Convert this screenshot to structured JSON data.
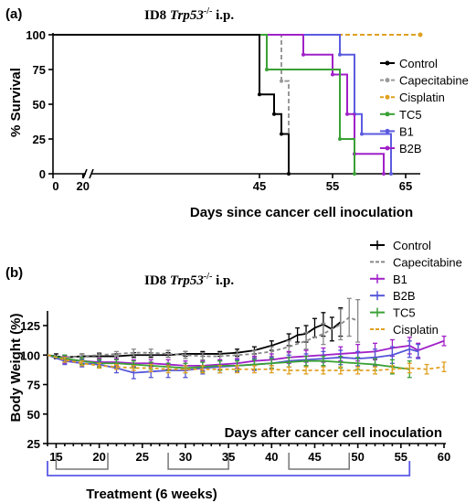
{
  "panels": [
    {
      "label": "(a)",
      "title_main": "ID8 ",
      "title_gene": "Trp53",
      "title_sup": "-/-",
      "title_tail": " i.p.",
      "xlabel": "Days since cancer cell inoculation",
      "ylabel": "% Survival"
    },
    {
      "label": "(b)",
      "title_main": "ID8 ",
      "title_gene": "Trp53",
      "title_sup": "-/-",
      "title_tail": " i.p.",
      "xlabel": "Days after cancer cell inoculation",
      "ylabel": "Body Weight (%)",
      "treatment_label": "Treatment (6 weeks)"
    }
  ],
  "chart_data": [
    {
      "type": "line",
      "subtype": "kaplan-meier",
      "title": "ID8 Trp53-/- i.p.",
      "xlabel": "Days since cancer cell inoculation",
      "ylabel": "% Survival",
      "xlim_segments": [
        [
          0,
          22
        ],
        [
          22,
          67
        ]
      ],
      "ylim": [
        0,
        100
      ],
      "x_ticks": [
        0,
        20,
        45,
        55,
        65
      ],
      "x_tick_labels": [
        "0",
        "20",
        "45",
        "55",
        "65"
      ],
      "y_ticks": [
        0,
        25,
        50,
        75,
        100
      ],
      "y_tick_labels": [
        "0",
        "25",
        "50",
        "75",
        "100"
      ],
      "legend_position": "right",
      "series": [
        {
          "name": "Control",
          "color": "#000000",
          "dash": "solid",
          "marker": "dot",
          "steps": [
            [
              0,
              100
            ],
            [
              45,
              57.1
            ],
            [
              47,
              42.9
            ],
            [
              48,
              28.6
            ],
            [
              49,
              0
            ]
          ]
        },
        {
          "name": "Capecitabine",
          "color": "#999999",
          "dash": "dashed",
          "marker": "dot",
          "steps": [
            [
              0,
              100
            ],
            [
              48,
              66.7
            ],
            [
              49,
              0
            ]
          ]
        },
        {
          "name": "Cisplatin",
          "color": "#e0a020",
          "dash": "dashed",
          "marker": "dot",
          "steps": [
            [
              0,
              100
            ],
            [
              67,
              100
            ]
          ]
        },
        {
          "name": "TC5",
          "color": "#3aa135",
          "dash": "solid",
          "marker": "dot",
          "steps": [
            [
              0,
              100
            ],
            [
              46,
              75
            ],
            [
              56,
              25
            ],
            [
              58,
              0
            ]
          ]
        },
        {
          "name": "B1",
          "color": "#5b5be0",
          "dash": "solid",
          "marker": "dot",
          "steps": [
            [
              0,
              100
            ],
            [
              56,
              85.7
            ],
            [
              58,
              42.9
            ],
            [
              59,
              28.6
            ],
            [
              63,
              0
            ]
          ]
        },
        {
          "name": "B2B",
          "color": "#a020c8",
          "dash": "solid",
          "marker": "dot",
          "steps": [
            [
              0,
              100
            ],
            [
              51,
              85.7
            ],
            [
              55,
              71.4
            ],
            [
              57,
              42.9
            ],
            [
              58,
              14.3
            ],
            [
              62,
              0
            ]
          ]
        }
      ]
    },
    {
      "type": "line",
      "title": "ID8 Trp53-/- i.p.",
      "xlabel": "Days after cancer cell inoculation",
      "ylabel": "Body Weight (%)",
      "xlim": [
        14,
        60
      ],
      "ylim": [
        25,
        135
      ],
      "x_ticks": [
        15,
        20,
        25,
        30,
        35,
        40,
        45,
        50,
        55,
        60
      ],
      "y_ticks": [
        25,
        50,
        75,
        100,
        125
      ],
      "legend_position": "top-right",
      "treatment_periods": [
        [
          15,
          21
        ],
        [
          28,
          35
        ],
        [
          42,
          49
        ]
      ],
      "treatment_span": [
        14,
        56
      ],
      "series": [
        {
          "name": "Control",
          "color": "#000000",
          "dash": "solid",
          "points": [
            [
              14,
              100,
              1
            ],
            [
              15,
              99,
              2
            ],
            [
              16,
              98,
              2
            ],
            [
              18,
              99,
              2
            ],
            [
              20,
              99,
              2
            ],
            [
              22,
              99,
              2
            ],
            [
              24,
              100,
              2
            ],
            [
              26,
              100,
              2
            ],
            [
              28,
              100,
              2
            ],
            [
              30,
              101,
              2
            ],
            [
              32,
              101,
              2
            ],
            [
              34,
              101,
              2
            ],
            [
              36,
              102,
              3
            ],
            [
              38,
              104,
              3
            ],
            [
              40,
              108,
              4
            ],
            [
              42,
              113,
              5
            ],
            [
              43,
              117,
              6
            ],
            [
              44,
              118,
              7
            ],
            [
              45,
              123,
              8
            ],
            [
              46,
              126,
              10
            ],
            [
              47,
              122,
              10
            ],
            [
              48,
              128,
              12
            ]
          ]
        },
        {
          "name": "Capecitabine",
          "color": "#888888",
          "dash": "dashed",
          "points": [
            [
              14,
              100,
              1
            ],
            [
              16,
              98,
              2
            ],
            [
              18,
              99,
              2
            ],
            [
              20,
              100,
              2
            ],
            [
              22,
              101,
              2
            ],
            [
              24,
              102,
              3
            ],
            [
              26,
              102,
              3
            ],
            [
              28,
              101,
              3
            ],
            [
              30,
              100,
              3
            ],
            [
              32,
              99,
              3
            ],
            [
              34,
              99,
              3
            ],
            [
              36,
              100,
              3
            ],
            [
              38,
              101,
              3
            ],
            [
              40,
              103,
              4
            ],
            [
              42,
              107,
              5
            ],
            [
              44,
              112,
              7
            ],
            [
              46,
              118,
              9
            ],
            [
              48,
              126,
              13
            ],
            [
              49,
              132,
              16
            ],
            [
              50,
              129,
              18
            ]
          ]
        },
        {
          "name": "B1",
          "color": "#a020c8",
          "dash": "solid",
          "points": [
            [
              14,
              100,
              1
            ],
            [
              16,
              96,
              3
            ],
            [
              18,
              95,
              3
            ],
            [
              20,
              94,
              3
            ],
            [
              22,
              94,
              3
            ],
            [
              24,
              93,
              3
            ],
            [
              26,
              93,
              3
            ],
            [
              28,
              92,
              4
            ],
            [
              30,
              91,
              4
            ],
            [
              32,
              91,
              4
            ],
            [
              34,
              92,
              4
            ],
            [
              36,
              93,
              4
            ],
            [
              38,
              95,
              4
            ],
            [
              40,
              96,
              5
            ],
            [
              42,
              98,
              5
            ],
            [
              44,
              99,
              5
            ],
            [
              46,
              100,
              6
            ],
            [
              48,
              101,
              6
            ],
            [
              50,
              102,
              7
            ],
            [
              52,
              103,
              7
            ],
            [
              54,
              106,
              7
            ],
            [
              56,
              108,
              7
            ],
            [
              57,
              104,
              6
            ],
            [
              60,
              112,
              4
            ]
          ]
        },
        {
          "name": "B2B",
          "color": "#5555d8",
          "dash": "solid",
          "points": [
            [
              14,
              100,
              1
            ],
            [
              16,
              95,
              3
            ],
            [
              18,
              93,
              3
            ],
            [
              20,
              92,
              3
            ],
            [
              22,
              89,
              4
            ],
            [
              24,
              85,
              5
            ],
            [
              26,
              86,
              5
            ],
            [
              28,
              87,
              6
            ],
            [
              30,
              87,
              6
            ],
            [
              32,
              89,
              5
            ],
            [
              34,
              90,
              5
            ],
            [
              36,
              91,
              5
            ],
            [
              38,
              92,
              5
            ],
            [
              40,
              93,
              5
            ],
            [
              42,
              95,
              5
            ],
            [
              44,
              96,
              5
            ],
            [
              46,
              97,
              6
            ],
            [
              48,
              98,
              6
            ],
            [
              50,
              97,
              6
            ],
            [
              52,
              98,
              7
            ],
            [
              54,
              100,
              7
            ],
            [
              56,
              105,
              7
            ],
            [
              57,
              103,
              6
            ]
          ]
        },
        {
          "name": "TC5",
          "color": "#3aa135",
          "dash": "solid",
          "points": [
            [
              14,
              100,
              1
            ],
            [
              16,
              97,
              3
            ],
            [
              18,
              95,
              3
            ],
            [
              20,
              93,
              3
            ],
            [
              22,
              93,
              3
            ],
            [
              24,
              92,
              3
            ],
            [
              26,
              91,
              3
            ],
            [
              28,
              90,
              3
            ],
            [
              30,
              89,
              4
            ],
            [
              32,
              90,
              4
            ],
            [
              34,
              91,
              4
            ],
            [
              36,
              91,
              4
            ],
            [
              38,
              92,
              4
            ],
            [
              40,
              93,
              4
            ],
            [
              42,
              94,
              4
            ],
            [
              44,
              95,
              4
            ],
            [
              46,
              95,
              4
            ],
            [
              48,
              94,
              5
            ],
            [
              50,
              93,
              5
            ],
            [
              52,
              92,
              5
            ],
            [
              54,
              90,
              6
            ],
            [
              56,
              88,
              7
            ]
          ]
        },
        {
          "name": "Cisplatin",
          "color": "#e0a020",
          "dash": "dashed",
          "points": [
            [
              14,
              100,
              1
            ],
            [
              16,
              96,
              2
            ],
            [
              18,
              93,
              2
            ],
            [
              20,
              91,
              2
            ],
            [
              22,
              90,
              2
            ],
            [
              24,
              89,
              2
            ],
            [
              26,
              89,
              3
            ],
            [
              28,
              88,
              3
            ],
            [
              30,
              88,
              3
            ],
            [
              32,
              88,
              3
            ],
            [
              34,
              88,
              3
            ],
            [
              36,
              88,
              3
            ],
            [
              38,
              88,
              3
            ],
            [
              40,
              88,
              3
            ],
            [
              42,
              87,
              3
            ],
            [
              44,
              87,
              3
            ],
            [
              46,
              87,
              3
            ],
            [
              48,
              87,
              3
            ],
            [
              50,
              87,
              3
            ],
            [
              52,
              87,
              3
            ],
            [
              54,
              88,
              3
            ],
            [
              56,
              89,
              4
            ],
            [
              58,
              88,
              4
            ],
            [
              60,
              90,
              4
            ]
          ]
        }
      ]
    }
  ]
}
